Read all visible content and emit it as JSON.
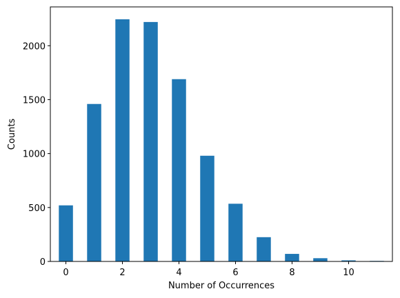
{
  "chart_data": {
    "type": "bar",
    "title": "",
    "xlabel": "Number of Occurrences",
    "ylabel": "Counts",
    "x": [
      0,
      1,
      2,
      3,
      4,
      5,
      6,
      7,
      8,
      9,
      10,
      11
    ],
    "values": [
      520,
      1460,
      2245,
      2220,
      1690,
      980,
      535,
      225,
      70,
      30,
      10,
      5
    ],
    "bar_color": "#1f77b4",
    "xlim": [
      -0.55,
      11.55
    ],
    "ylim": [
      0,
      2360
    ],
    "xticks": [
      0,
      2,
      4,
      6,
      8,
      10
    ],
    "yticks": [
      0,
      500,
      1000,
      1500,
      2000
    ],
    "grid": false,
    "legend": "none"
  }
}
